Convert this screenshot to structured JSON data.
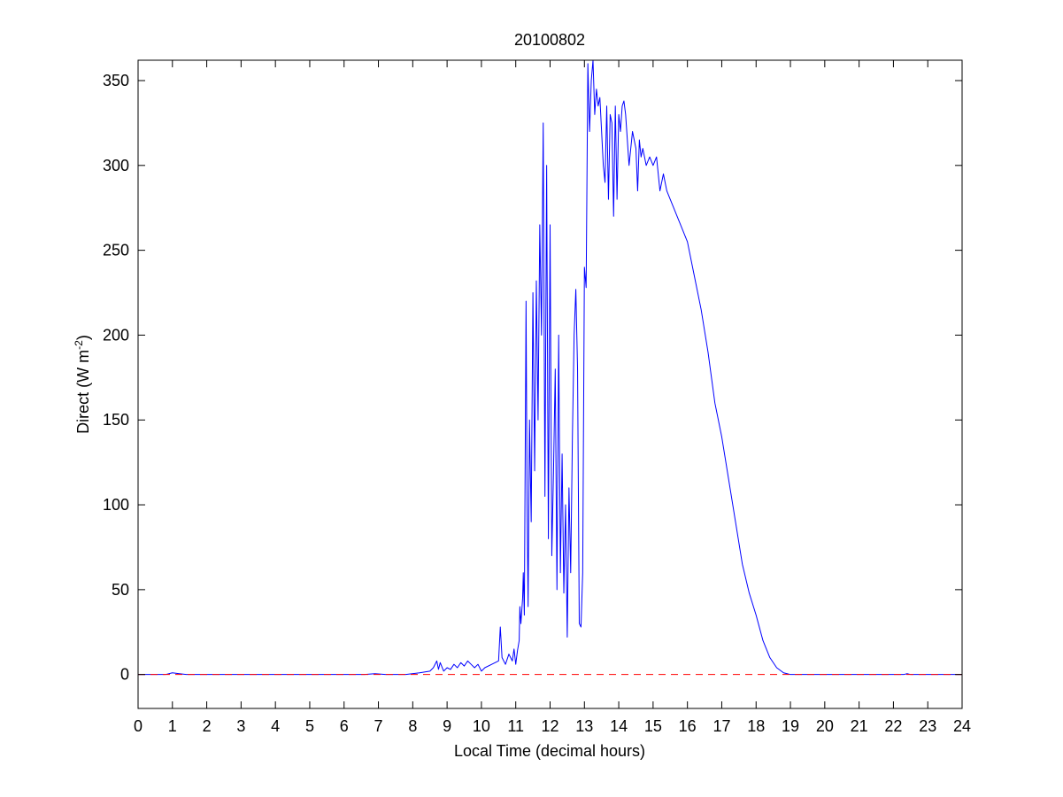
{
  "chart_data": {
    "type": "line",
    "title": "20100802",
    "xlabel": "Local Time (decimal hours)",
    "ylabel": {
      "base": "Direct (W m",
      "superscript": "-2",
      "close": ")"
    },
    "xlim": [
      0,
      24
    ],
    "ylim": [
      -20,
      362
    ],
    "xticks": [
      0,
      1,
      2,
      3,
      4,
      5,
      6,
      7,
      8,
      9,
      10,
      11,
      12,
      13,
      14,
      15,
      16,
      17,
      18,
      19,
      20,
      21,
      22,
      23,
      24
    ],
    "yticks": [
      0,
      50,
      100,
      150,
      200,
      250,
      300,
      350
    ],
    "grid": false,
    "legend": "none",
    "series": [
      {
        "color": "#0000ff",
        "style": "solid",
        "x": [
          0,
          0.8,
          1.0,
          1.2,
          1.4,
          3.0,
          6.6,
          6.9,
          7.2,
          7.8,
          8.2,
          8.5,
          8.6,
          8.7,
          8.75,
          8.8,
          8.9,
          9.0,
          9.1,
          9.2,
          9.3,
          9.4,
          9.5,
          9.6,
          9.7,
          9.8,
          9.9,
          10.0,
          10.1,
          10.3,
          10.5,
          10.55,
          10.6,
          10.7,
          10.8,
          10.9,
          10.95,
          11.0,
          11.05,
          11.1,
          11.12,
          11.15,
          11.2,
          11.22,
          11.25,
          11.3,
          11.33,
          11.36,
          11.4,
          11.45,
          11.5,
          11.55,
          11.6,
          11.65,
          11.7,
          11.75,
          11.8,
          11.85,
          11.9,
          11.95,
          12.0,
          12.05,
          12.1,
          12.15,
          12.2,
          12.25,
          12.3,
          12.35,
          12.4,
          12.45,
          12.5,
          12.55,
          12.6,
          12.65,
          12.7,
          12.75,
          12.8,
          12.85,
          12.9,
          12.95,
          13.0,
          13.05,
          13.1,
          13.15,
          13.2,
          13.25,
          13.3,
          13.35,
          13.4,
          13.45,
          13.5,
          13.55,
          13.6,
          13.65,
          13.7,
          13.75,
          13.8,
          13.85,
          13.9,
          13.95,
          14.0,
          14.05,
          14.1,
          14.15,
          14.2,
          14.3,
          14.4,
          14.5,
          14.55,
          14.6,
          14.65,
          14.7,
          14.8,
          14.9,
          15.0,
          15.1,
          15.2,
          15.3,
          15.4,
          15.5,
          15.6,
          15.7,
          15.8,
          16.0,
          16.2,
          16.4,
          16.6,
          16.8,
          17.0,
          17.2,
          17.4,
          17.6,
          17.8,
          18.0,
          18.2,
          18.4,
          18.6,
          18.8,
          19.0,
          22.3,
          22.4,
          22.5,
          23.0,
          24
        ],
        "y": [
          0,
          0,
          1,
          0.5,
          0,
          0,
          0,
          0.5,
          0,
          0,
          1,
          2,
          4,
          8,
          3,
          7,
          2,
          4,
          3,
          6,
          4,
          7,
          5,
          8,
          6,
          4,
          6,
          2,
          4,
          6,
          8,
          28,
          10,
          6,
          12,
          8,
          15,
          6,
          14,
          20,
          40,
          30,
          45,
          60,
          35,
          220,
          100,
          40,
          150,
          90,
          225,
          120,
          232,
          150,
          265,
          200,
          325,
          105,
          300,
          80,
          265,
          70,
          120,
          180,
          50,
          200,
          60,
          130,
          48,
          100,
          22,
          110,
          60,
          140,
          200,
          227,
          180,
          30,
          28,
          60,
          240,
          228,
          360,
          320,
          350,
          362,
          330,
          345,
          335,
          340,
          320,
          300,
          290,
          335,
          280,
          330,
          325,
          270,
          335,
          280,
          330,
          320,
          335,
          338,
          330,
          300,
          320,
          310,
          285,
          315,
          305,
          310,
          300,
          305,
          300,
          305,
          285,
          295,
          285,
          280,
          275,
          270,
          265,
          255,
          235,
          215,
          190,
          160,
          140,
          115,
          90,
          65,
          48,
          35,
          20,
          10,
          4,
          1,
          0,
          0,
          0.5,
          0,
          0,
          0
        ]
      },
      {
        "color": "#ff0000",
        "style": "dashed",
        "x": [
          0,
          24
        ],
        "y": [
          0,
          0
        ]
      }
    ]
  }
}
